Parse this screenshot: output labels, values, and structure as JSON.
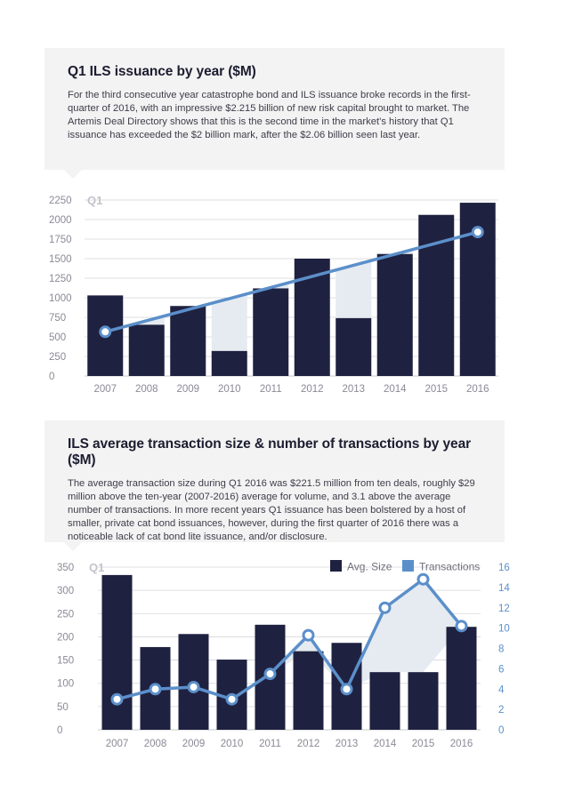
{
  "section1": {
    "title": "Q1 ILS issuance by year ($M)",
    "body": "For the third consecutive year catastrophe bond and ILS issuance broke records in the first-quarter of 2016, with an impressive $2.215 billion of new risk capital brought to market. The Artemis Deal Directory shows that this is the second time in the market’s history that Q1 issuance has exceeded the $2 billion mark, after the $2.06 billion seen last year."
  },
  "section2": {
    "title": "ILS average transaction size & number of transactions by year ($M)",
    "body": "The average transaction size during Q1 2016 was $221.5 million from ten deals, roughly $29 million above the ten-year (2007-2016) average for volume, and 3.1 above the average number of transactions. In more recent years Q1 issuance has been bolstered by a host of smaller, private cat bond issuances, however, during the first quarter of 2016 there was a noticeable lack of cat bond lite issuance, and/or disclosure."
  },
  "colors": {
    "bar": "#1f2140",
    "line": "#5b8fca",
    "fill": "#e6ebf1",
    "grid": "#d5d5da"
  },
  "chart_data": [
    {
      "type": "bar",
      "label": "Q1",
      "categories": [
        "2007",
        "2008",
        "2009",
        "2010",
        "2011",
        "2012",
        "2013",
        "2014",
        "2015",
        "2016"
      ],
      "values": [
        1030,
        655,
        895,
        320,
        1120,
        1500,
        740,
        1560,
        2060,
        2215
      ],
      "trend": {
        "start": 565,
        "end": 1840
      },
      "ylim": [
        0,
        2250
      ],
      "yticks": [
        "0",
        "250",
        "500",
        "750",
        "1000",
        "1250",
        "1500",
        "1750",
        "2000",
        "2250"
      ],
      "grid": true
    },
    {
      "type": "bar",
      "label": "Q1",
      "categories": [
        "2007",
        "2008",
        "2009",
        "2010",
        "2011",
        "2012",
        "2013",
        "2014",
        "2015",
        "2016"
      ],
      "series": [
        {
          "name": "Avg. Size",
          "type": "bar",
          "axis": "left",
          "values": [
            333,
            178,
            206,
            151,
            226,
            169,
            187,
            124,
            124,
            221.5
          ]
        },
        {
          "name": "Transactions",
          "type": "line",
          "axis": "right",
          "values": [
            3,
            4,
            4.2,
            3,
            5.5,
            9.3,
            4,
            12,
            14.8,
            10.2
          ]
        }
      ],
      "ylim": [
        0,
        350
      ],
      "yticks": [
        "0",
        "50",
        "100",
        "150",
        "200",
        "250",
        "300",
        "350"
      ],
      "y2lim": [
        0,
        16
      ],
      "y2ticks": [
        "0",
        "2",
        "4",
        "6",
        "8",
        "10",
        "12",
        "14",
        "16"
      ],
      "legend": "top-right",
      "grid": true
    }
  ]
}
